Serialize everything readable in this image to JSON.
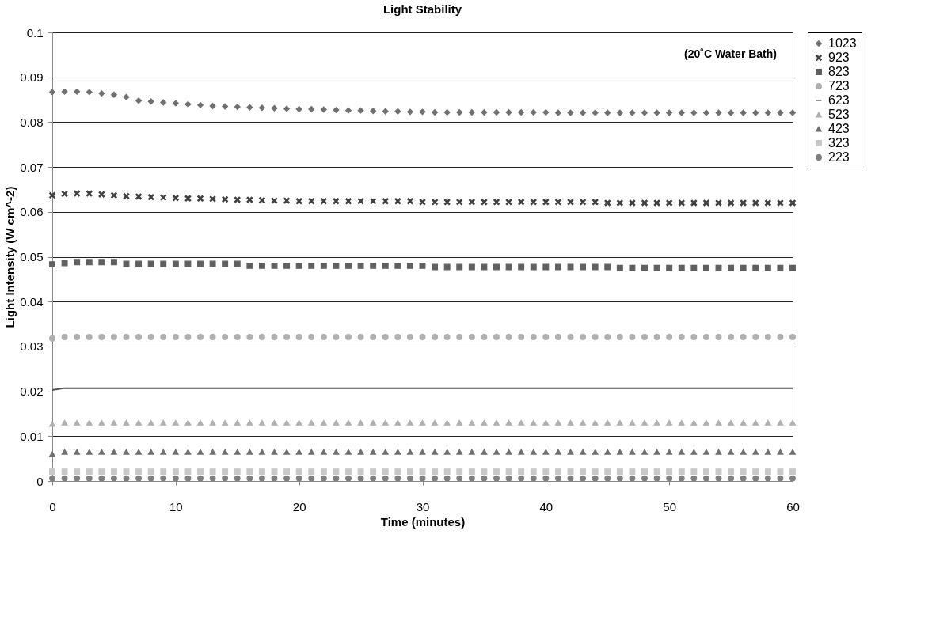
{
  "chart_data": {
    "type": "scatter",
    "title": "Light Stability",
    "xlabel": "Time (minutes)",
    "ylabel": "Light Intensity (W cm^-2)",
    "annotations": [
      "(20˚C Water Bath)"
    ],
    "xlim": [
      0,
      60
    ],
    "xticks": [
      0,
      10,
      20,
      30,
      40,
      50,
      60
    ],
    "ylim": [
      0,
      0.1
    ],
    "yticks": [
      0,
      0.01,
      0.02,
      0.03,
      0.04,
      0.05,
      0.06,
      0.07,
      0.08,
      0.09,
      0.1
    ],
    "grid": "y",
    "legend": "right",
    "x": [
      0,
      1,
      2,
      3,
      4,
      5,
      6,
      7,
      8,
      9,
      10,
      11,
      12,
      13,
      14,
      15,
      16,
      17,
      18,
      19,
      20,
      21,
      22,
      23,
      24,
      25,
      26,
      27,
      28,
      29,
      30,
      31,
      32,
      33,
      34,
      35,
      36,
      37,
      38,
      39,
      40,
      41,
      42,
      43,
      44,
      45,
      46,
      47,
      48,
      49,
      50,
      51,
      52,
      53,
      54,
      55,
      56,
      57,
      58,
      59,
      60
    ],
    "series": [
      {
        "name": "1023",
        "color": "#707070",
        "marker": "diamond",
        "values": [
          0.0867,
          0.0868,
          0.0868,
          0.0867,
          0.0864,
          0.0861,
          0.0856,
          0.0848,
          0.0846,
          0.0844,
          0.0842,
          0.084,
          0.0838,
          0.0836,
          0.0835,
          0.0834,
          0.0833,
          0.0832,
          0.0831,
          0.083,
          0.0829,
          0.0829,
          0.0828,
          0.0827,
          0.0826,
          0.0826,
          0.0825,
          0.0824,
          0.0824,
          0.0823,
          0.0823,
          0.0822,
          0.0822,
          0.0822,
          0.0822,
          0.0822,
          0.0822,
          0.0822,
          0.0822,
          0.0822,
          0.0822,
          0.0821,
          0.0821,
          0.0821,
          0.0821,
          0.0821,
          0.0821,
          0.0821,
          0.0821,
          0.0821,
          0.0821,
          0.0821,
          0.0821,
          0.0821,
          0.0821,
          0.0821,
          0.0821,
          0.0821,
          0.0821,
          0.0821,
          0.0821
        ]
      },
      {
        "name": "923",
        "color": "#404040",
        "marker": "cross",
        "values": [
          0.0637,
          0.064,
          0.0641,
          0.0641,
          0.0639,
          0.0637,
          0.0635,
          0.0634,
          0.0633,
          0.0632,
          0.0631,
          0.063,
          0.063,
          0.0629,
          0.0628,
          0.0627,
          0.0627,
          0.0626,
          0.0625,
          0.0625,
          0.0624,
          0.0624,
          0.0624,
          0.0624,
          0.0624,
          0.0624,
          0.0624,
          0.0624,
          0.0624,
          0.0624,
          0.0622,
          0.0622,
          0.0622,
          0.0622,
          0.0622,
          0.0622,
          0.0622,
          0.0622,
          0.0622,
          0.0622,
          0.0622,
          0.0622,
          0.0622,
          0.0622,
          0.0622,
          0.062,
          0.062,
          0.062,
          0.062,
          0.062,
          0.062,
          0.062,
          0.062,
          0.062,
          0.062,
          0.062,
          0.062,
          0.062,
          0.062,
          0.062,
          0.062
        ]
      },
      {
        "name": "823",
        "color": "#606060",
        "marker": "square",
        "values": [
          0.0483,
          0.0486,
          0.0488,
          0.0488,
          0.0488,
          0.0488,
          0.0484,
          0.0484,
          0.0484,
          0.0484,
          0.0484,
          0.0484,
          0.0484,
          0.0484,
          0.0484,
          0.0484,
          0.048,
          0.048,
          0.048,
          0.048,
          0.048,
          0.048,
          0.048,
          0.048,
          0.048,
          0.048,
          0.048,
          0.048,
          0.048,
          0.048,
          0.048,
          0.0477,
          0.0477,
          0.0477,
          0.0477,
          0.0477,
          0.0477,
          0.0477,
          0.0477,
          0.0477,
          0.0477,
          0.0477,
          0.0477,
          0.0477,
          0.0477,
          0.0477,
          0.0475,
          0.0475,
          0.0475,
          0.0475,
          0.0475,
          0.0475,
          0.0475,
          0.0475,
          0.0475,
          0.0475,
          0.0475,
          0.0475,
          0.0475,
          0.0475,
          0.0475
        ]
      },
      {
        "name": "723",
        "color": "#b0b0b0",
        "marker": "circle",
        "values": [
          0.0318,
          0.0321,
          0.0321,
          0.0321,
          0.0321,
          0.0321,
          0.0321,
          0.0321,
          0.0321,
          0.0321,
          0.0321,
          0.0321,
          0.0321,
          0.0321,
          0.0321,
          0.0321,
          0.0321,
          0.0321,
          0.0321,
          0.0321,
          0.0321,
          0.0321,
          0.0321,
          0.0321,
          0.0321,
          0.0321,
          0.0321,
          0.0321,
          0.0321,
          0.0321,
          0.0321,
          0.0321,
          0.0321,
          0.0321,
          0.0321,
          0.0321,
          0.0321,
          0.0321,
          0.0321,
          0.0321,
          0.0321,
          0.0321,
          0.0321,
          0.0321,
          0.0321,
          0.0321,
          0.0321,
          0.0321,
          0.0321,
          0.0321,
          0.0321,
          0.0321,
          0.0321,
          0.0321,
          0.0321,
          0.0321,
          0.0321,
          0.0321,
          0.0321,
          0.0321,
          0.0321
        ]
      },
      {
        "name": "623",
        "color": "#505050",
        "type": "line",
        "marker": "none",
        "values": [
          0.0203,
          0.0207,
          0.0207,
          0.0207,
          0.0207,
          0.0207,
          0.0207,
          0.0207,
          0.0207,
          0.0207,
          0.0207,
          0.0207,
          0.0207,
          0.0207,
          0.0207,
          0.0207,
          0.0207,
          0.0207,
          0.0207,
          0.0207,
          0.0207,
          0.0207,
          0.0207,
          0.0207,
          0.0207,
          0.0207,
          0.0207,
          0.0207,
          0.0207,
          0.0207,
          0.0207,
          0.0207,
          0.0207,
          0.0207,
          0.0207,
          0.0207,
          0.0207,
          0.0207,
          0.0207,
          0.0207,
          0.0207,
          0.0207,
          0.0207,
          0.0207,
          0.0207,
          0.0207,
          0.0207,
          0.0207,
          0.0207,
          0.0207,
          0.0207,
          0.0207,
          0.0207,
          0.0207,
          0.0207,
          0.0207,
          0.0207,
          0.0207,
          0.0207,
          0.0207,
          0.0207
        ]
      },
      {
        "name": "523",
        "color": "#b0b0b0",
        "marker": "triangle",
        "values": [
          0.0127,
          0.013,
          0.013,
          0.013,
          0.013,
          0.013,
          0.013,
          0.013,
          0.013,
          0.013,
          0.013,
          0.013,
          0.013,
          0.013,
          0.013,
          0.013,
          0.013,
          0.013,
          0.013,
          0.013,
          0.013,
          0.013,
          0.013,
          0.013,
          0.013,
          0.013,
          0.013,
          0.013,
          0.013,
          0.013,
          0.013,
          0.013,
          0.013,
          0.013,
          0.013,
          0.013,
          0.013,
          0.013,
          0.013,
          0.013,
          0.013,
          0.013,
          0.013,
          0.013,
          0.013,
          0.013,
          0.013,
          0.013,
          0.013,
          0.013,
          0.013,
          0.013,
          0.013,
          0.013,
          0.013,
          0.013,
          0.013,
          0.013,
          0.013,
          0.013,
          0.013
        ]
      },
      {
        "name": "423",
        "color": "#707070",
        "marker": "triangle",
        "values": [
          0.006,
          0.0065,
          0.0065,
          0.0065,
          0.0065,
          0.0065,
          0.0065,
          0.0065,
          0.0065,
          0.0065,
          0.0065,
          0.0065,
          0.0065,
          0.0065,
          0.0065,
          0.0065,
          0.0065,
          0.0065,
          0.0065,
          0.0065,
          0.0065,
          0.0065,
          0.0065,
          0.0065,
          0.0065,
          0.0065,
          0.0065,
          0.0065,
          0.0065,
          0.0065,
          0.0065,
          0.0065,
          0.0065,
          0.0065,
          0.0065,
          0.0065,
          0.0065,
          0.0065,
          0.0065,
          0.0065,
          0.0065,
          0.0065,
          0.0065,
          0.0065,
          0.0065,
          0.0065,
          0.0065,
          0.0065,
          0.0065,
          0.0065,
          0.0065,
          0.0065,
          0.0065,
          0.0065,
          0.0065,
          0.0065,
          0.0065,
          0.0065,
          0.0065,
          0.0065,
          0.0065
        ]
      },
      {
        "name": "323",
        "color": "#c8c8c8",
        "marker": "square",
        "values": [
          0.0021,
          0.0021,
          0.0021,
          0.0021,
          0.0021,
          0.0021,
          0.0021,
          0.0021,
          0.0021,
          0.0021,
          0.0021,
          0.0021,
          0.0021,
          0.0021,
          0.0021,
          0.0021,
          0.0021,
          0.0021,
          0.0021,
          0.0021,
          0.0021,
          0.0021,
          0.0021,
          0.0021,
          0.0021,
          0.0021,
          0.0021,
          0.0021,
          0.0021,
          0.0021,
          0.0021,
          0.0021,
          0.0021,
          0.0021,
          0.0021,
          0.0021,
          0.0021,
          0.0021,
          0.0021,
          0.0021,
          0.0021,
          0.0021,
          0.0021,
          0.0021,
          0.0021,
          0.0021,
          0.0021,
          0.0021,
          0.0021,
          0.0021,
          0.0021,
          0.0021,
          0.0021,
          0.0021,
          0.0021,
          0.0021,
          0.0021,
          0.0021,
          0.0021,
          0.0021,
          0.0021
        ]
      },
      {
        "name": "223",
        "color": "#808080",
        "marker": "circle",
        "values": [
          0.0006,
          0.0006,
          0.0006,
          0.0006,
          0.0006,
          0.0006,
          0.0006,
          0.0006,
          0.0006,
          0.0006,
          0.0006,
          0.0006,
          0.0006,
          0.0006,
          0.0006,
          0.0006,
          0.0006,
          0.0006,
          0.0006,
          0.0006,
          0.0006,
          0.0006,
          0.0006,
          0.0006,
          0.0006,
          0.0006,
          0.0006,
          0.0006,
          0.0006,
          0.0006,
          0.0006,
          0.0006,
          0.0006,
          0.0006,
          0.0006,
          0.0006,
          0.0006,
          0.0006,
          0.0006,
          0.0006,
          0.0006,
          0.0006,
          0.0006,
          0.0006,
          0.0006,
          0.0006,
          0.0006,
          0.0006,
          0.0006,
          0.0006,
          0.0006,
          0.0006,
          0.0006,
          0.0006,
          0.0006,
          0.0006,
          0.0006,
          0.0006,
          0.0006,
          0.0006,
          0.0006
        ]
      }
    ]
  }
}
